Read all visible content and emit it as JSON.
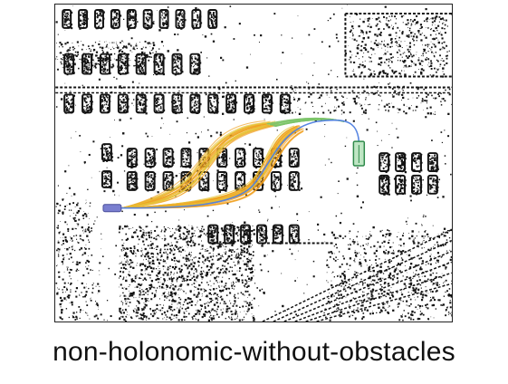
{
  "figure": {
    "caption": "non-holonomic-without-obstacles"
  },
  "colors": {
    "map_ink": "#141414",
    "start_vehicle": "#7a7fd0",
    "goal_vehicle": "#2f8a4a",
    "goal_vehicle_fill": "#bfe6c4",
    "path_early": "#f0a020",
    "path_mid": "#e7c43a",
    "path_late": "#7cc46a",
    "path_final": "#4f7fe0"
  }
}
